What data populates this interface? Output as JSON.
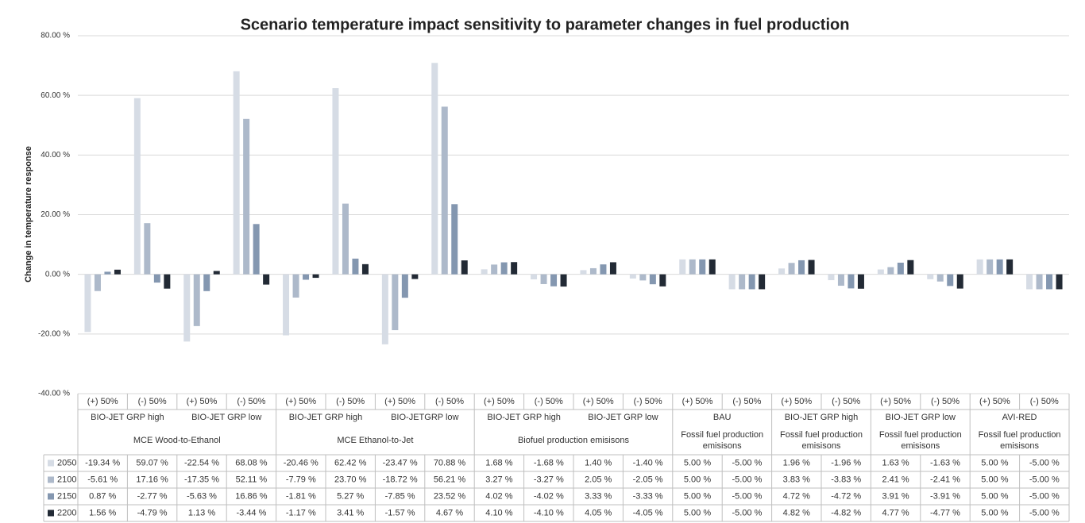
{
  "chart_data": {
    "type": "bar",
    "title": "Scenario temperature impact sensitivity to parameter changes in fuel production",
    "y_label": "Change in temperature response",
    "ylim": [
      -40,
      80
    ],
    "yticks": [
      {
        "value": -40,
        "label": "-40.00 %"
      },
      {
        "value": -20,
        "label": "-20.00 %"
      },
      {
        "value": 0,
        "label": "0.00 %"
      },
      {
        "value": 20,
        "label": "20.00 %"
      },
      {
        "value": 40,
        "label": "40.00 %"
      },
      {
        "value": 60,
        "label": "60.00 %"
      },
      {
        "value": 80,
        "label": "80.00 %"
      }
    ],
    "grid": true,
    "groups": [
      {
        "label": "MCE Wood-to-Ethanol",
        "subgroups": [
          {
            "label": "BIO-JET GRP high",
            "categories": [
              "(+) 50%",
              "(-) 50%"
            ]
          },
          {
            "label": "BIO-JET GRP low",
            "categories": [
              "(+) 50%",
              "(-) 50%"
            ]
          }
        ]
      },
      {
        "label": "MCE Ethanol-to-Jet",
        "subgroups": [
          {
            "label": "BIO-JET GRP high",
            "categories": [
              "(+) 50%",
              "(-) 50%"
            ]
          },
          {
            "label": "BIO-JETGRP low",
            "categories": [
              "(+) 50%",
              "(-) 50%"
            ]
          }
        ]
      },
      {
        "label": "Biofuel production emisisons",
        "subgroups": [
          {
            "label": "BIO-JET GRP high",
            "categories": [
              "(+) 50%",
              "(-) 50%"
            ]
          },
          {
            "label": "BIO-JET GRP low",
            "categories": [
              "(+) 50%",
              "(-) 50%"
            ]
          }
        ]
      },
      {
        "label": "Fossil fuel production emisisons",
        "subgroups": [
          {
            "label": "BAU",
            "categories": [
              "(+) 50%",
              "(-) 50%"
            ]
          }
        ]
      },
      {
        "label": "Fossil fuel production emisisons",
        "subgroups": [
          {
            "label": "BIO-JET GRP high",
            "categories": [
              "(+) 50%",
              "(-) 50%"
            ]
          }
        ]
      },
      {
        "label": "Fossil fuel production emisisons",
        "subgroups": [
          {
            "label": "BIO-JET GRP low",
            "categories": [
              "(+) 50%",
              "(-) 50%"
            ]
          }
        ]
      },
      {
        "label": "Fossil fuel production emisisons",
        "subgroups": [
          {
            "label": "AVI-RED",
            "categories": [
              "(+) 50%",
              "(-) 50%"
            ]
          }
        ]
      }
    ],
    "series": [
      {
        "name": "2050",
        "color": "#d6dce5",
        "values": [
          -19.34,
          59.07,
          -22.54,
          68.08,
          -20.46,
          62.42,
          -23.47,
          70.88,
          1.68,
          -1.68,
          1.4,
          -1.4,
          5,
          -5,
          1.96,
          -1.96,
          1.63,
          -1.63,
          5,
          -5
        ],
        "value_labels": [
          "-19.34 %",
          "59.07 %",
          "-22.54 %",
          "68.08 %",
          "-20.46 %",
          "62.42 %",
          "-23.47 %",
          "70.88 %",
          "1.68 %",
          "-1.68 %",
          "1.40 %",
          "-1.40 %",
          "5.00 %",
          "-5.00 %",
          "1.96 %",
          "-1.96 %",
          "1.63 %",
          "-1.63 %",
          "5.00 %",
          "-5.00 %"
        ]
      },
      {
        "name": "2100",
        "color": "#adb9ca",
        "values": [
          -5.61,
          17.16,
          -17.35,
          52.11,
          -7.79,
          23.7,
          -18.72,
          56.21,
          3.27,
          -3.27,
          2.05,
          -2.05,
          5,
          -5,
          3.83,
          -3.83,
          2.41,
          -2.41,
          5,
          -5
        ],
        "value_labels": [
          "-5.61 %",
          "17.16 %",
          "-17.35 %",
          "52.11 %",
          "-7.79 %",
          "23.70 %",
          "-18.72 %",
          "56.21 %",
          "3.27 %",
          "-3.27 %",
          "2.05 %",
          "-2.05 %",
          "5.00 %",
          "-5.00 %",
          "3.83 %",
          "-3.83 %",
          "2.41 %",
          "-2.41 %",
          "5.00 %",
          "-5.00 %"
        ]
      },
      {
        "name": "2150",
        "color": "#8497b0",
        "values": [
          0.87,
          -2.77,
          -5.63,
          16.86,
          -1.81,
          5.27,
          -7.85,
          23.52,
          4.02,
          -4.02,
          3.33,
          -3.33,
          5,
          -5,
          4.72,
          -4.72,
          3.91,
          -3.91,
          5,
          -5
        ],
        "value_labels": [
          "0.87 %",
          "-2.77 %",
          "-5.63 %",
          "16.86 %",
          "-1.81 %",
          "5.27 %",
          "-7.85 %",
          "23.52 %",
          "4.02 %",
          "-4.02 %",
          "3.33 %",
          "-3.33 %",
          "5.00 %",
          "-5.00 %",
          "4.72 %",
          "-4.72 %",
          "3.91 %",
          "-3.91 %",
          "5.00 %",
          "-5.00 %"
        ]
      },
      {
        "name": "2200",
        "color": "#222a35",
        "values": [
          1.56,
          -4.79,
          1.13,
          -3.44,
          -1.17,
          3.41,
          -1.57,
          4.67,
          4.1,
          -4.1,
          4.05,
          -4.05,
          5,
          -5,
          4.82,
          -4.82,
          4.77,
          -4.77,
          5,
          -5
        ],
        "value_labels": [
          "1.56 %",
          "-4.79 %",
          "1.13 %",
          "-3.44 %",
          "-1.17 %",
          "3.41 %",
          "-1.57 %",
          "4.67 %",
          "4.10 %",
          "-4.10 %",
          "4.05 %",
          "-4.05 %",
          "5.00 %",
          "-5.00 %",
          "4.82 %",
          "-4.82 %",
          "4.77 %",
          "-4.77 %",
          "5.00 %",
          "-5.00 %"
        ]
      }
    ]
  }
}
